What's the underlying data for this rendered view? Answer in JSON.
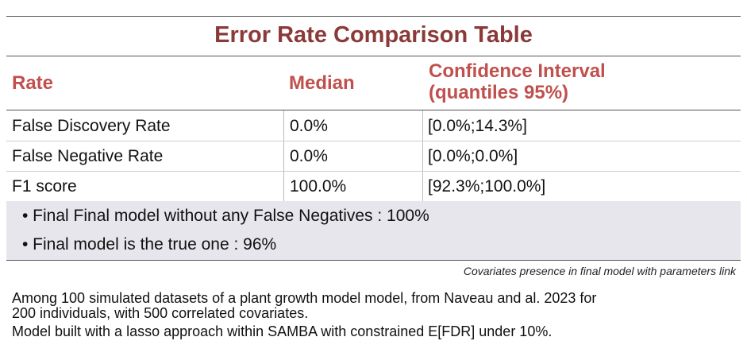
{
  "title": "Error Rate Comparison Table",
  "headers": {
    "rate": "Rate",
    "median": "Median",
    "ci_line1": "Confidence Interval",
    "ci_line2": "(quantiles 95%)"
  },
  "rows": [
    {
      "rate": "False Discovery Rate",
      "median": "0.0%",
      "ci": "[0.0%;14.3%]"
    },
    {
      "rate": "False Negative Rate",
      "median": "0.0%",
      "ci": "[0.0%;0.0%]"
    },
    {
      "rate": "F1 score",
      "median": "100.0%",
      "ci": "[92.3%;100.0%]"
    }
  ],
  "notes": [
    "• Final Final model without any False Negatives : 100%",
    "• Final model is the true one : 96%"
  ],
  "caption": "Covariates presence in final model with parameters link",
  "footer": [
    "Among 100 simulated datasets of a plant growth model model, from Naveau and al. 2023 for",
    "200 individuals, with 500 correlated covariates.",
    "Model built with a lasso approach within SAMBA with constrained E[FDR] under 10%."
  ]
}
